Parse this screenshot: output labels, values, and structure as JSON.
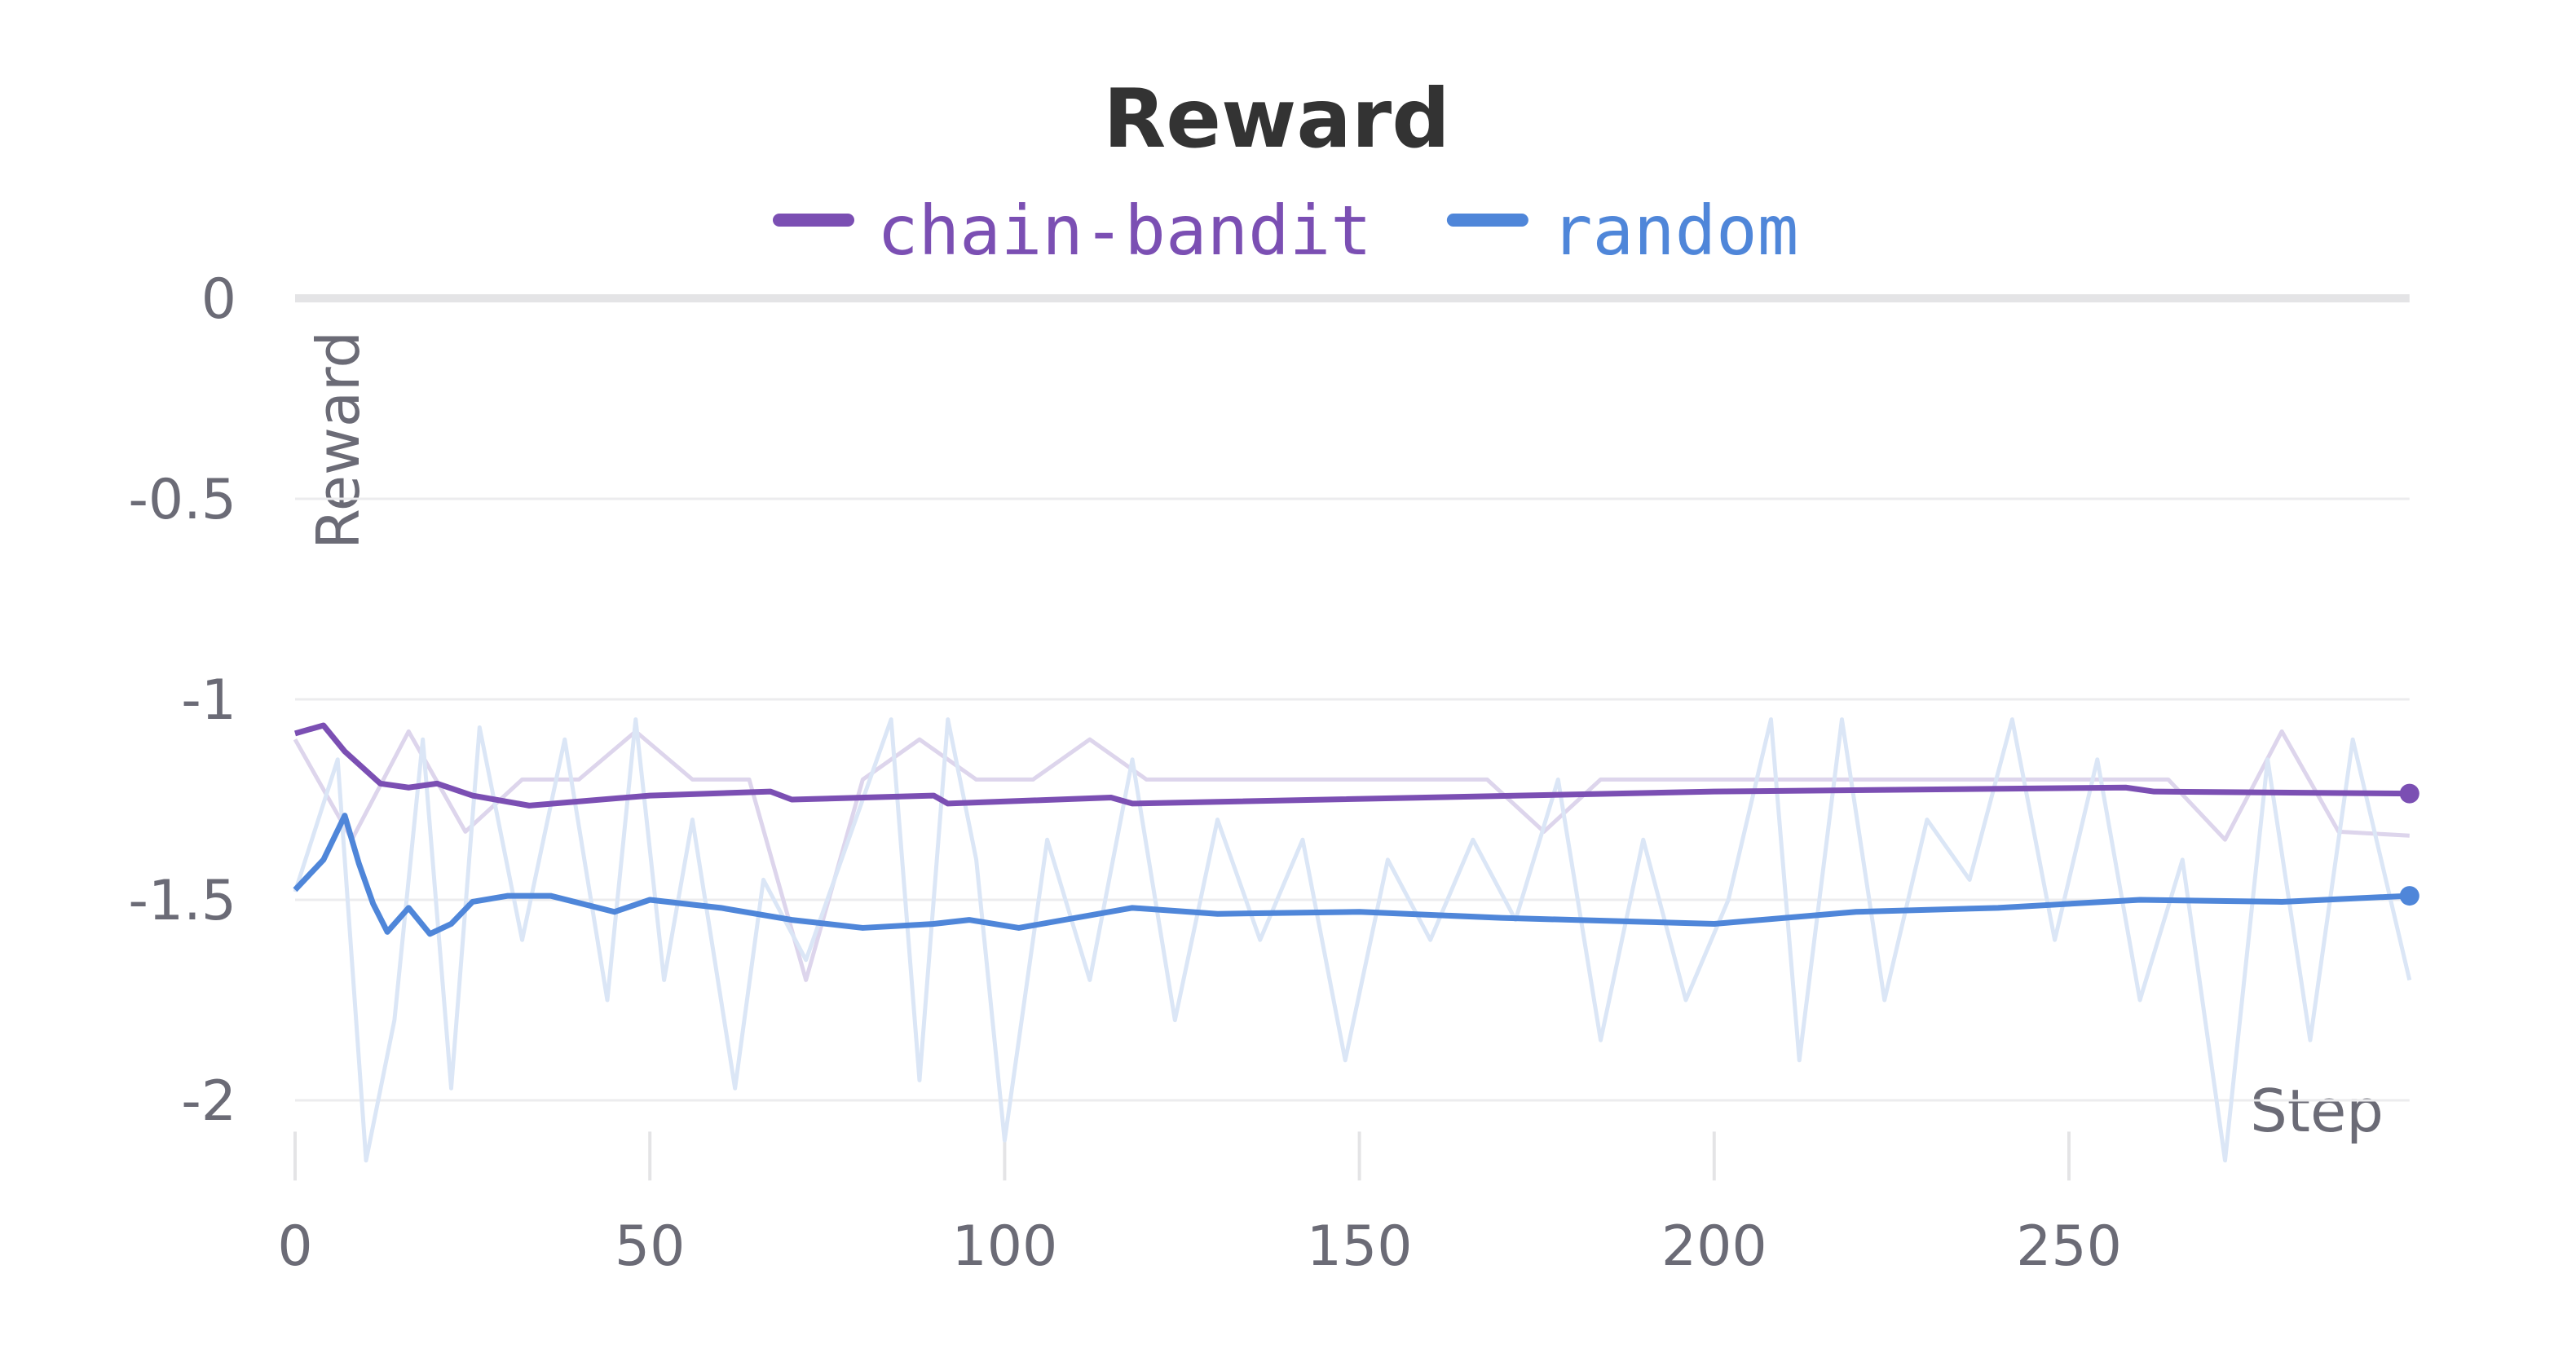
{
  "chart_data": {
    "type": "line",
    "title": "Reward",
    "x_label": "Step",
    "y_label": "Reward",
    "xlim": [
      0,
      298
    ],
    "ylim": [
      -2.2,
      0
    ],
    "xticks": [
      0,
      50,
      100,
      150,
      200,
      250
    ],
    "yticks": [
      0,
      -0.5,
      -1,
      -1.5,
      -2
    ],
    "grid": true,
    "series": [
      {
        "name": "chain-bandit",
        "color": "#7b4fb3",
        "x": [
          0,
          4,
          7,
          12,
          16,
          20,
          25,
          33,
          50,
          67,
          70,
          90,
          92,
          115,
          118,
          200,
          258,
          262,
          298
        ],
        "values": [
          -1.085,
          -1.065,
          -1.13,
          -1.21,
          -1.22,
          -1.21,
          -1.24,
          -1.265,
          -1.24,
          -1.23,
          -1.25,
          -1.24,
          -1.26,
          -1.245,
          -1.26,
          -1.23,
          -1.22,
          -1.23,
          -1.235
        ]
      },
      {
        "name": "random",
        "color": "#4f86d9",
        "x": [
          0,
          4,
          7,
          9,
          11,
          13,
          16,
          19,
          22,
          25,
          30,
          36,
          45,
          50,
          60,
          70,
          80,
          90,
          95,
          102,
          118,
          130,
          150,
          170,
          200,
          220,
          240,
          260,
          280,
          298
        ],
        "values": [
          -1.475,
          -1.4,
          -1.29,
          -1.41,
          -1.51,
          -1.58,
          -1.52,
          -1.585,
          -1.56,
          -1.505,
          -1.49,
          -1.49,
          -1.53,
          -1.5,
          -1.52,
          -1.55,
          -1.57,
          -1.56,
          -1.55,
          -1.57,
          -1.52,
          -1.535,
          -1.53,
          -1.545,
          -1.56,
          -1.53,
          -1.52,
          -1.5,
          -1.505,
          -1.49
        ]
      }
    ],
    "raw_series": [
      {
        "color": "#ddd5ec",
        "x": [
          0,
          8,
          16,
          24,
          32,
          40,
          48,
          56,
          64,
          72,
          80,
          88,
          96,
          104,
          112,
          120,
          128,
          136,
          144,
          152,
          160,
          168,
          176,
          184,
          192,
          200,
          208,
          216,
          224,
          232,
          240,
          248,
          256,
          264,
          272,
          280,
          288,
          298
        ],
        "values": [
          -1.1,
          -1.35,
          -1.08,
          -1.33,
          -1.2,
          -1.2,
          -1.08,
          -1.2,
          -1.2,
          -1.7,
          -1.2,
          -1.1,
          -1.2,
          -1.2,
          -1.1,
          -1.2,
          -1.2,
          -1.2,
          -1.2,
          -1.2,
          -1.2,
          -1.2,
          -1.33,
          -1.2,
          -1.2,
          -1.2,
          -1.2,
          -1.2,
          -1.2,
          -1.2,
          -1.2,
          -1.2,
          -1.2,
          -1.2,
          -1.35,
          -1.08,
          -1.33,
          -1.34
        ]
      },
      {
        "color": "#dbe6f6",
        "x": [
          0,
          6,
          10,
          14,
          18,
          22,
          26,
          32,
          38,
          44,
          48,
          52,
          56,
          62,
          66,
          72,
          78,
          84,
          88,
          92,
          96,
          100,
          106,
          112,
          118,
          124,
          130,
          136,
          142,
          148,
          154,
          160,
          166,
          172,
          178,
          184,
          190,
          196,
          202,
          208,
          212,
          218,
          224,
          230,
          236,
          242,
          248,
          254,
          260,
          266,
          272,
          278,
          284,
          290,
          298
        ],
        "values": [
          -1.48,
          -1.15,
          -2.15,
          -1.8,
          -1.1,
          -1.97,
          -1.07,
          -1.6,
          -1.1,
          -1.75,
          -1.05,
          -1.7,
          -1.3,
          -1.97,
          -1.45,
          -1.65,
          -1.35,
          -1.05,
          -1.95,
          -1.05,
          -1.4,
          -2.1,
          -1.35,
          -1.7,
          -1.15,
          -1.8,
          -1.3,
          -1.6,
          -1.35,
          -1.9,
          -1.4,
          -1.6,
          -1.35,
          -1.55,
          -1.2,
          -1.85,
          -1.35,
          -1.75,
          -1.5,
          -1.05,
          -1.9,
          -1.05,
          -1.75,
          -1.3,
          -1.45,
          -1.05,
          -1.6,
          -1.15,
          -1.75,
          -1.4,
          -2.15,
          -1.15,
          -1.85,
          -1.1,
          -1.7
        ]
      }
    ]
  }
}
